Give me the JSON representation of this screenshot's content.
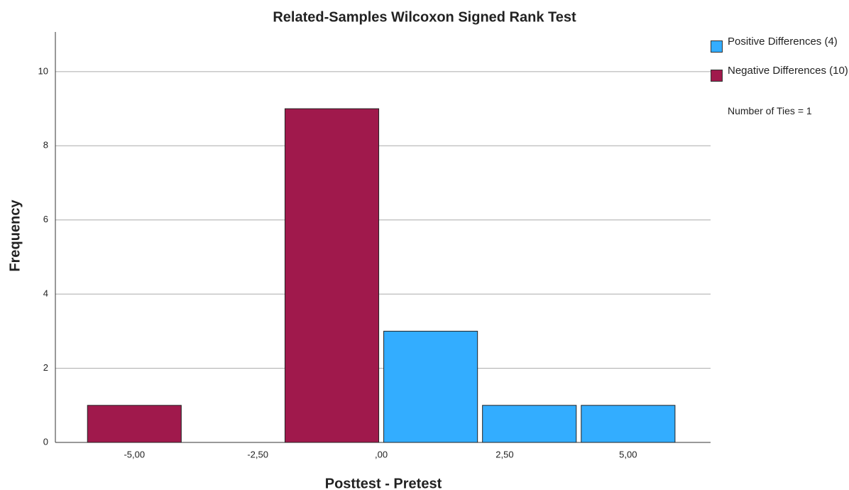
{
  "chart_data": {
    "type": "histogram",
    "title": "Related-Samples Wilcoxon Signed Rank Test",
    "x_label": "Posttest - Pretest",
    "y_label": "Frequency",
    "bins": [
      -6,
      -4,
      -2,
      0,
      2,
      4,
      6
    ],
    "series": [
      {
        "name": "Positive Differences (4)",
        "color": "#33adff",
        "values": [
          0,
          0,
          0,
          3,
          1,
          1
        ]
      },
      {
        "name": "Negative Differences (10)",
        "color": "#a0194c",
        "values": [
          1,
          0,
          9,
          0,
          0,
          0
        ]
      }
    ],
    "annotation": "Number of Ties = 1",
    "xlim": [
      -6.6,
      6.67
    ],
    "ylim": [
      0,
      11.07
    ],
    "xticks": [
      {
        "value": -5,
        "label": "-5,00"
      },
      {
        "value": -2.5,
        "label": "-2,50"
      },
      {
        "value": 0,
        "label": ",00"
      },
      {
        "value": 2.5,
        "label": "2,50"
      },
      {
        "value": 5,
        "label": "5,00"
      }
    ],
    "yticks": [
      0,
      2,
      4,
      6,
      8,
      10
    ],
    "grid": true,
    "legend": "right"
  }
}
